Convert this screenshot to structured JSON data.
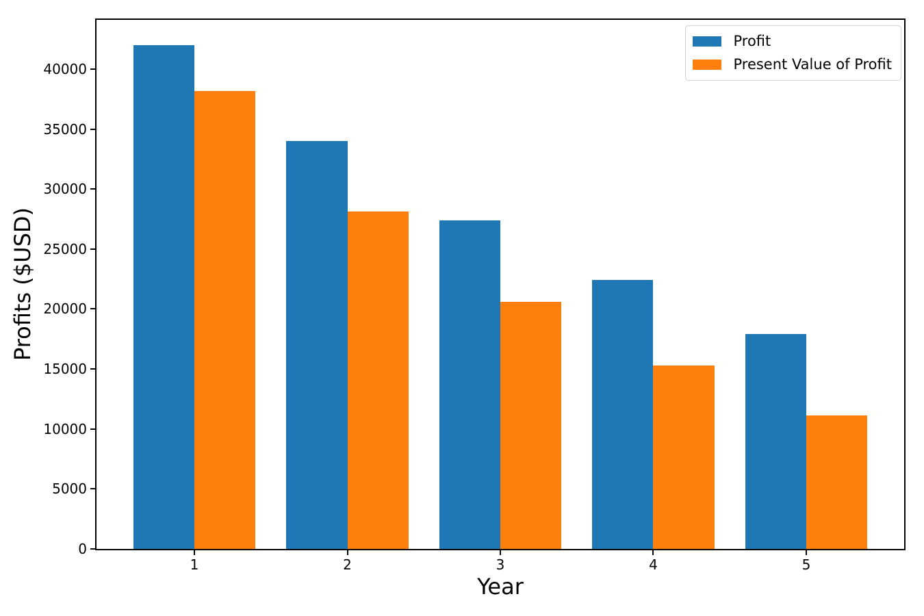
{
  "chart_data": {
    "type": "bar",
    "title": "",
    "xlabel": "Year",
    "ylabel": "Profits ($USD)",
    "categories": [
      1,
      2,
      3,
      4,
      5
    ],
    "xticklabels": [
      "1",
      "2",
      "3",
      "4",
      "5"
    ],
    "series": [
      {
        "name": "Profit",
        "color": "#1f77b4",
        "values": [
          42000,
          34000,
          27400,
          22400,
          17900
        ]
      },
      {
        "name": "Present Value of Profit",
        "color": "#ff7f0e",
        "values": [
          38182,
          28099,
          20586,
          15300,
          11115
        ]
      }
    ],
    "yticks": [
      0,
      5000,
      10000,
      15000,
      20000,
      25000,
      30000,
      35000,
      40000
    ],
    "yticklabels": [
      "0",
      "5000",
      "10000",
      "15000",
      "20000",
      "25000",
      "30000",
      "35000",
      "40000"
    ],
    "xlim": [
      0.36,
      5.64
    ],
    "ylim": [
      0,
      44100
    ],
    "bar_width": 0.4,
    "legend_position": "upper right",
    "grid": false,
    "background_color": "#ffffff",
    "spine_color": "#000000"
  }
}
